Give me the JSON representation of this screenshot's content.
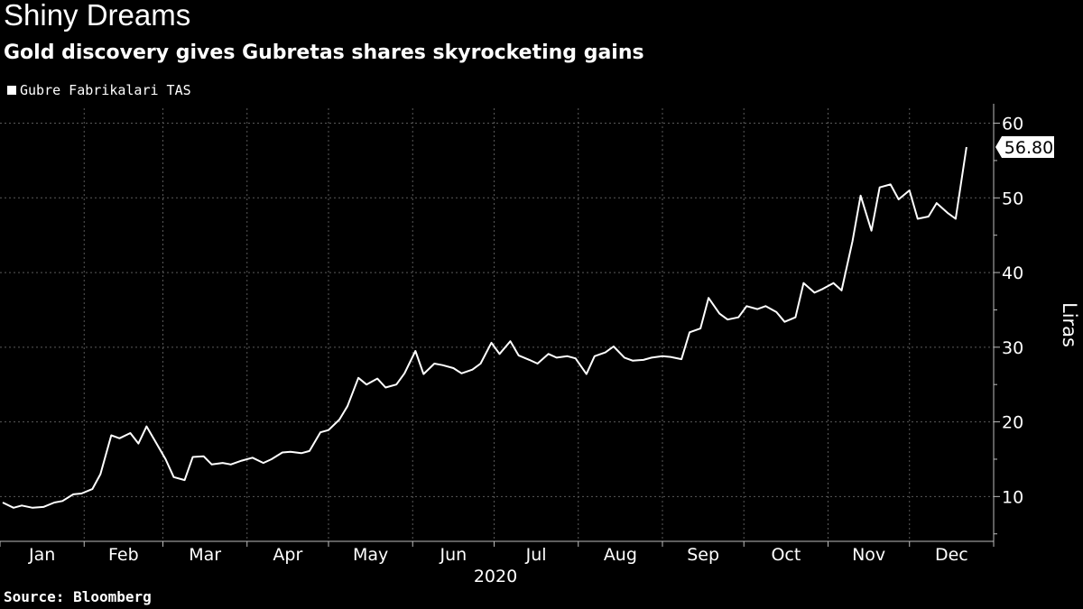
{
  "header": {
    "title": "Shiny Dreams",
    "subtitle": "Gold discovery gives Gubretas shares skyrocketing gains"
  },
  "legend": {
    "label": "Gubre Fabrikalari TAS"
  },
  "footer": {
    "source": "Source: Bloomberg"
  },
  "colors": {
    "background": "#000000",
    "line": "#ffffff",
    "grid": "#5a5a5a"
  },
  "chart_data": {
    "type": "line",
    "title": "Shiny Dreams",
    "subtitle": "Gold discovery gives Gubretas shares skyrocketing gains",
    "ylabel": "Liras",
    "xlabel": "2020",
    "ylim": [
      4,
      62
    ],
    "yticks": [
      10,
      20,
      30,
      40,
      50,
      60
    ],
    "months": [
      "Jan",
      "Feb",
      "Mar",
      "Apr",
      "May",
      "Jun",
      "Jul",
      "Aug",
      "Sep",
      "Oct",
      "Nov",
      "Dec"
    ],
    "year_label": "2020",
    "last_value_label": "56.80",
    "grid": true,
    "legend_position": "top-left",
    "series": [
      {
        "name": "Gubre Fabrikalari TAS",
        "x": [
          "2020-01-02",
          "2020-01-06",
          "2020-01-09",
          "2020-01-13",
          "2020-01-17",
          "2020-01-21",
          "2020-01-24",
          "2020-01-28",
          "2020-01-31",
          "2020-02-04",
          "2020-02-07",
          "2020-02-11",
          "2020-02-14",
          "2020-02-18",
          "2020-02-21",
          "2020-02-24",
          "2020-02-27",
          "2020-03-02",
          "2020-03-05",
          "2020-03-09",
          "2020-03-12",
          "2020-03-16",
          "2020-03-19",
          "2020-03-23",
          "2020-03-26",
          "2020-03-30",
          "2020-04-03",
          "2020-04-07",
          "2020-04-10",
          "2020-04-14",
          "2020-04-17",
          "2020-04-21",
          "2020-04-24",
          "2020-04-28",
          "2020-05-01",
          "2020-05-05",
          "2020-05-08",
          "2020-05-12",
          "2020-05-15",
          "2020-05-19",
          "2020-05-22",
          "2020-05-26",
          "2020-05-29",
          "2020-06-02",
          "2020-06-05",
          "2020-06-09",
          "2020-06-12",
          "2020-06-16",
          "2020-06-19",
          "2020-06-23",
          "2020-06-26",
          "2020-06-30",
          "2020-07-03",
          "2020-07-07",
          "2020-07-10",
          "2020-07-14",
          "2020-07-17",
          "2020-07-21",
          "2020-07-24",
          "2020-07-28",
          "2020-07-31",
          "2020-08-04",
          "2020-08-07",
          "2020-08-11",
          "2020-08-14",
          "2020-08-18",
          "2020-08-21",
          "2020-08-25",
          "2020-08-28",
          "2020-09-01",
          "2020-09-04",
          "2020-09-08",
          "2020-09-11",
          "2020-09-15",
          "2020-09-18",
          "2020-09-22",
          "2020-09-25",
          "2020-09-29",
          "2020-10-02",
          "2020-10-06",
          "2020-10-09",
          "2020-10-13",
          "2020-10-16",
          "2020-10-20",
          "2020-10-23",
          "2020-10-27",
          "2020-10-30",
          "2020-11-03",
          "2020-11-06",
          "2020-11-10",
          "2020-11-13",
          "2020-11-17",
          "2020-11-20",
          "2020-11-24",
          "2020-11-27",
          "2020-12-01",
          "2020-12-04",
          "2020-12-08",
          "2020-12-11",
          "2020-12-15",
          "2020-12-18",
          "2020-12-22"
        ],
        "values": [
          9.2,
          8.5,
          8.8,
          8.5,
          8.6,
          9.2,
          9.4,
          10.3,
          10.4,
          11.0,
          13.0,
          18.2,
          17.8,
          18.5,
          17.1,
          19.4,
          17.5,
          15.0,
          12.6,
          12.2,
          15.3,
          15.4,
          14.3,
          14.5,
          14.3,
          14.8,
          15.2,
          14.5,
          15.0,
          15.9,
          16.0,
          15.8,
          16.1,
          18.6,
          18.9,
          20.3,
          22.1,
          25.9,
          25.0,
          25.8,
          24.6,
          25.0,
          26.5,
          29.5,
          26.4,
          27.8,
          27.6,
          27.2,
          26.5,
          27.0,
          27.8,
          30.6,
          29.1,
          30.8,
          28.9,
          28.3,
          27.8,
          29.1,
          28.6,
          28.8,
          28.5,
          26.4,
          28.8,
          29.3,
          30.1,
          28.6,
          28.2,
          28.3,
          28.6,
          28.8,
          28.7,
          28.4,
          32.0,
          32.5,
          36.6,
          34.5,
          33.7,
          34.0,
          35.5,
          35.1,
          35.5,
          34.7,
          33.4,
          34.0,
          38.6,
          37.3,
          37.8,
          38.6,
          37.6,
          44.2,
          50.3,
          45.6,
          51.4,
          51.8,
          49.8,
          51.0,
          47.2,
          47.5,
          49.3,
          48.0,
          47.2,
          56.8
        ]
      }
    ]
  }
}
